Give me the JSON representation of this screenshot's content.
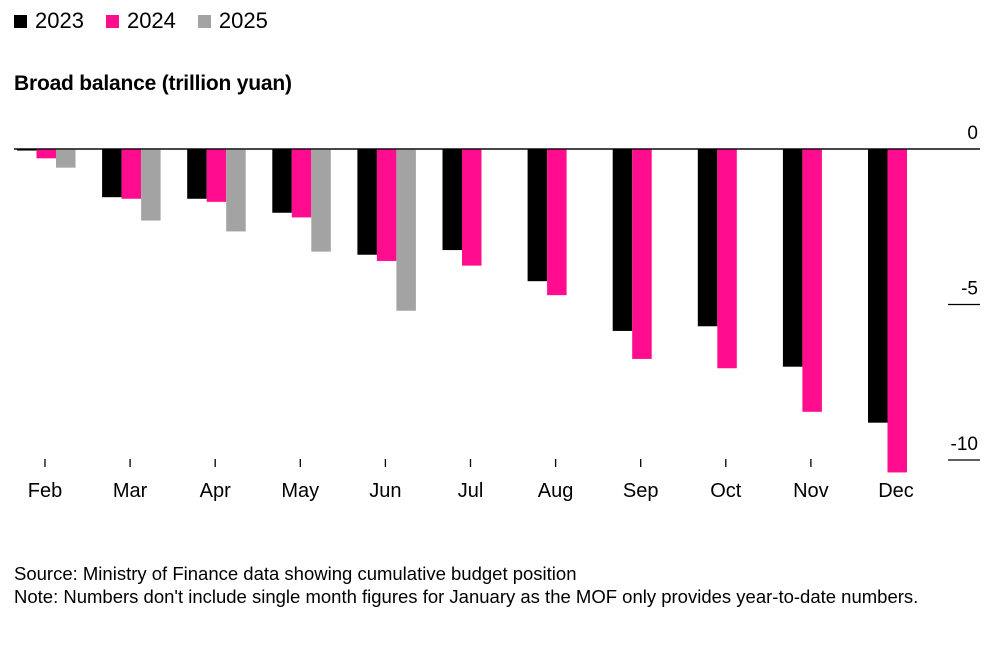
{
  "legend": [
    {
      "label": "2023",
      "color": "#000000"
    },
    {
      "label": "2024",
      "color": "#ff0d8e"
    },
    {
      "label": "2025",
      "color": "#a3a3a3"
    }
  ],
  "chart_data": {
    "type": "bar",
    "title": "Broad balance (trillion yuan)",
    "xlabel": "",
    "ylabel": "trillion yuan",
    "ylim": [
      -10.5,
      0
    ],
    "yticks": [
      0,
      -5,
      -10
    ],
    "ytick_labels": [
      "0",
      "-5",
      "-10"
    ],
    "axis_position": "right",
    "categories": [
      "Feb",
      "Mar",
      "Apr",
      "May",
      "Jun",
      "Jul",
      "Aug",
      "Sep",
      "Oct",
      "Nov",
      "Dec"
    ],
    "series": [
      {
        "name": "2023",
        "color": "#000000",
        "values": [
          -0.05,
          -1.55,
          -1.6,
          -2.05,
          -3.4,
          -3.25,
          -4.25,
          -5.85,
          -5.7,
          -7.0,
          -8.8
        ]
      },
      {
        "name": "2024",
        "color": "#ff0d8e",
        "values": [
          -0.3,
          -1.6,
          -1.7,
          -2.2,
          -3.6,
          -3.75,
          -4.7,
          -6.75,
          -7.05,
          -8.45,
          -10.4
        ]
      },
      {
        "name": "2025",
        "color": "#a3a3a3",
        "values": [
          -0.6,
          -2.3,
          -2.65,
          -3.3,
          -5.2,
          null,
          null,
          null,
          null,
          null,
          null
        ]
      }
    ]
  },
  "footer": {
    "source": "Source: Ministry of Finance data showing cumulative budget position",
    "note": "Note: Numbers don't include single month figures for January as the MOF only provides year-to-date numbers."
  }
}
